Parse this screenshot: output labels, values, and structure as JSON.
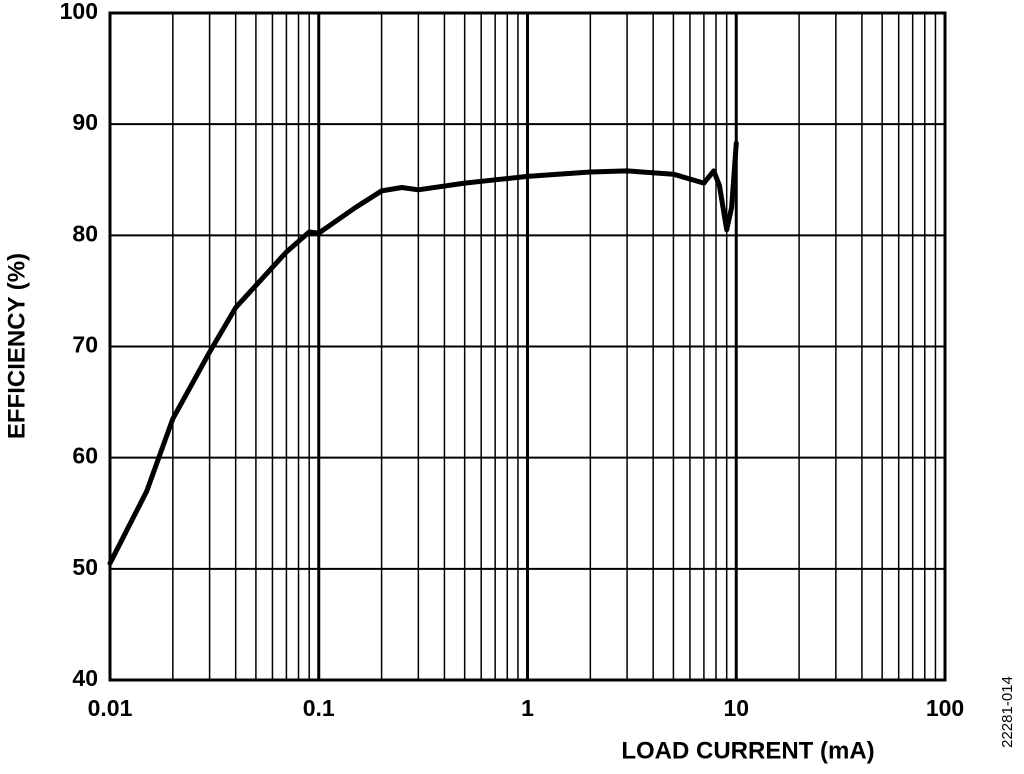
{
  "chart_data": {
    "type": "line",
    "x_label": "LOAD CURRENT (mA)",
    "y_label": "EFFICIENCY (%)",
    "annotation": "22281-014",
    "x_log": true,
    "grid": true,
    "minor_grid": true,
    "xlim": [
      0.01,
      100
    ],
    "xticks": [
      0.01,
      0.1,
      1,
      10,
      100
    ],
    "ylim": [
      40,
      100
    ],
    "yticks": [
      40,
      50,
      60,
      70,
      80,
      90,
      100
    ],
    "series": [
      {
        "color": "#000000",
        "x": [
          0.01,
          0.015,
          0.02,
          0.03,
          0.04,
          0.05,
          0.07,
          0.09,
          0.1,
          0.15,
          0.2,
          0.25,
          0.3,
          0.5,
          0.7,
          1,
          2,
          3,
          5,
          7,
          7.8,
          8.3,
          9,
          9.5,
          10
        ],
        "values": [
          50.5,
          57,
          63.5,
          69.5,
          73.5,
          75.5,
          78.5,
          80.3,
          80.2,
          82.5,
          84,
          84.3,
          84.1,
          84.7,
          85,
          85.3,
          85.7,
          85.8,
          85.5,
          84.7,
          85.8,
          84.5,
          80.5,
          82.5,
          88.3
        ]
      }
    ]
  }
}
